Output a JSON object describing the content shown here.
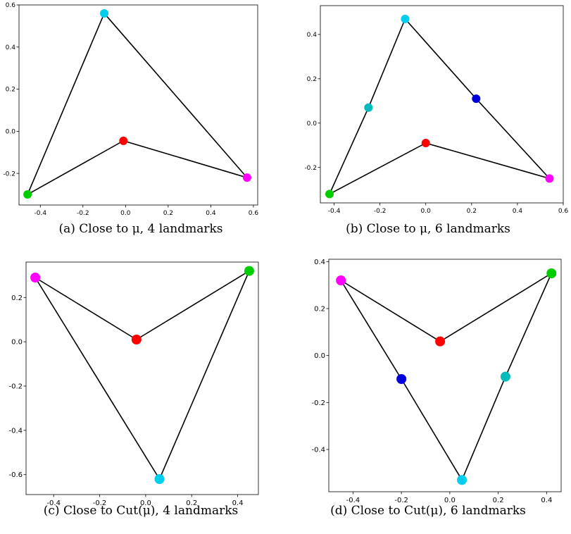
{
  "chart_data": [
    {
      "type": "scatter",
      "caption": "(a) Close to μ, 4 landmarks",
      "xlim": [
        -0.5,
        0.62
      ],
      "ylim": [
        -0.35,
        0.6
      ],
      "xticks": [
        "-0.4",
        "-0.2",
        "0.0",
        "0.2",
        "0.4",
        "0.6"
      ],
      "xtick_values": [
        -0.4,
        -0.2,
        0.0,
        0.2,
        0.4,
        0.6
      ],
      "yticks": [
        "-0.2",
        "0.0",
        "0.2",
        "0.4",
        "0.6"
      ],
      "ytick_values": [
        -0.2,
        0.0,
        0.2,
        0.4,
        0.6
      ],
      "points": [
        {
          "x": -0.1,
          "y": 0.56,
          "color": "#00ccee"
        },
        {
          "x": 0.57,
          "y": -0.22,
          "color": "#ff00ff"
        },
        {
          "x": -0.01,
          "y": -0.045,
          "color": "#ff0000"
        },
        {
          "x": -0.46,
          "y": -0.3,
          "color": "#00cc00"
        }
      ],
      "polygon_order": [
        0,
        1,
        2,
        3
      ],
      "grid": false
    },
    {
      "type": "scatter",
      "caption": "(b) Close to μ, 6 landmarks",
      "xlim": [
        -0.46,
        0.6
      ],
      "ylim": [
        -0.36,
        0.53
      ],
      "xticks": [
        "-0.4",
        "-0.2",
        "0.0",
        "0.2",
        "0.4",
        "0.6"
      ],
      "xtick_values": [
        -0.4,
        -0.2,
        0.0,
        0.2,
        0.4,
        0.6
      ],
      "yticks": [
        "-0.2",
        "0.0",
        "0.2",
        "0.4"
      ],
      "ytick_values": [
        -0.2,
        0.0,
        0.2,
        0.4
      ],
      "points": [
        {
          "x": -0.09,
          "y": 0.47,
          "color": "#00ccee"
        },
        {
          "x": 0.22,
          "y": 0.11,
          "color": "#0000dd"
        },
        {
          "x": 0.54,
          "y": -0.25,
          "color": "#ff00ff"
        },
        {
          "x": 0.0,
          "y": -0.09,
          "color": "#ff0000"
        },
        {
          "x": -0.42,
          "y": -0.32,
          "color": "#00cc00"
        },
        {
          "x": -0.25,
          "y": 0.07,
          "color": "#00bbbb"
        }
      ],
      "polygon_order": [
        0,
        1,
        2,
        3,
        4,
        5
      ],
      "grid": false
    },
    {
      "type": "scatter",
      "caption": "(c) Close to Cut(μ), 4 landmarks",
      "xlim": [
        -0.52,
        0.49
      ],
      "ylim": [
        -0.69,
        0.36
      ],
      "xticks": [
        "-0.4",
        "-0.2",
        "0.0",
        "0.2",
        "0.4"
      ],
      "xtick_values": [
        -0.4,
        -0.2,
        0.0,
        0.2,
        0.4
      ],
      "yticks": [
        "-0.6",
        "-0.4",
        "-0.2",
        "0.0",
        "0.2"
      ],
      "ytick_values": [
        -0.6,
        -0.4,
        -0.2,
        0.0,
        0.2
      ],
      "points": [
        {
          "x": -0.48,
          "y": 0.29,
          "color": "#ff00ff"
        },
        {
          "x": -0.04,
          "y": 0.01,
          "color": "#ff0000"
        },
        {
          "x": 0.45,
          "y": 0.32,
          "color": "#00cc00"
        },
        {
          "x": 0.06,
          "y": -0.62,
          "color": "#00ccee"
        }
      ],
      "polygon_order": [
        0,
        1,
        2,
        3
      ],
      "grid": false
    },
    {
      "type": "scatter",
      "caption": "(d) Close to Cut(μ), 6 landmarks",
      "xlim": [
        -0.5,
        0.46
      ],
      "ylim": [
        -0.58,
        0.41
      ],
      "xticks": [
        "-0.4",
        "-0.2",
        "0.0",
        "0.2",
        "0.4"
      ],
      "xtick_values": [
        -0.4,
        -0.2,
        0.0,
        0.2,
        0.4
      ],
      "yticks": [
        "-0.4",
        "-0.2",
        "0.0",
        "0.2",
        "0.4"
      ],
      "ytick_values": [
        -0.4,
        -0.2,
        0.0,
        0.2,
        0.4
      ],
      "points": [
        {
          "x": -0.45,
          "y": 0.32,
          "color": "#ff00ff"
        },
        {
          "x": -0.04,
          "y": 0.06,
          "color": "#ff0000"
        },
        {
          "x": 0.42,
          "y": 0.35,
          "color": "#00cc00"
        },
        {
          "x": 0.23,
          "y": -0.09,
          "color": "#00bbbb"
        },
        {
          "x": 0.05,
          "y": -0.53,
          "color": "#00ccee"
        },
        {
          "x": -0.2,
          "y": -0.1,
          "color": "#0000dd"
        }
      ],
      "polygon_order": [
        0,
        1,
        2,
        3,
        4,
        5
      ],
      "grid": false
    }
  ]
}
